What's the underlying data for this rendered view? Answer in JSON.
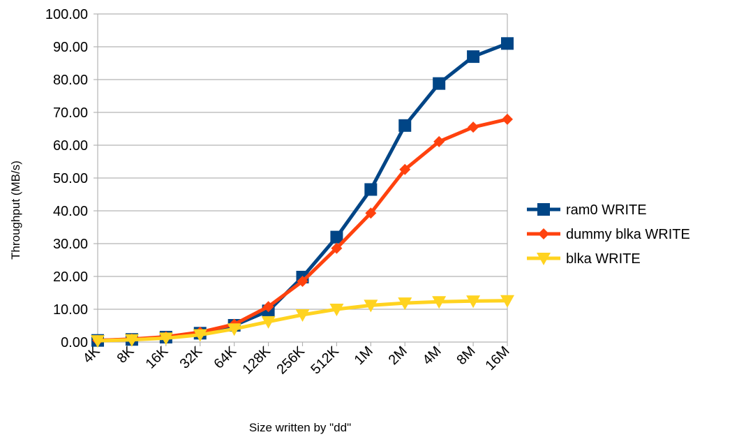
{
  "chart_data": {
    "type": "line",
    "xlabel": "Size written by \"dd\"",
    "ylabel": "Throughput (MB/s)",
    "categories": [
      "4K",
      "8K",
      "16K",
      "32K",
      "64K",
      "128K",
      "256K",
      "512K",
      "1M",
      "2M",
      "4M",
      "8M",
      "16M"
    ],
    "ylim": [
      0,
      100
    ],
    "yticks": [
      "0.00",
      "10.00",
      "20.00",
      "30.00",
      "40.00",
      "50.00",
      "60.00",
      "70.00",
      "80.00",
      "90.00",
      "100.00"
    ],
    "grid": true,
    "legend_position": "right",
    "series": [
      {
        "name": "ram0 WRITE",
        "color": "#004586",
        "marker": "square",
        "values": [
          0.5,
          0.8,
          1.5,
          2.7,
          5.1,
          9.5,
          19.8,
          32.0,
          46.5,
          66.0,
          78.8,
          87.0,
          91.0
        ]
      },
      {
        "name": "dummy blka WRITE",
        "color": "#FF420E",
        "marker": "diamond",
        "values": [
          0.5,
          0.9,
          1.6,
          3.0,
          5.4,
          10.8,
          18.5,
          28.6,
          39.3,
          52.6,
          61.1,
          65.5,
          67.9
        ]
      },
      {
        "name": "blka WRITE",
        "color": "#FFD320",
        "marker": "triangle-down",
        "values": [
          0.4,
          0.7,
          1.2,
          2.2,
          4.0,
          6.2,
          8.3,
          10.0,
          11.2,
          11.9,
          12.3,
          12.5,
          12.6
        ]
      }
    ]
  },
  "colors": {
    "grid": "#b3b3b3",
    "axis": "#b3b3b3",
    "background": "#ffffff"
  }
}
